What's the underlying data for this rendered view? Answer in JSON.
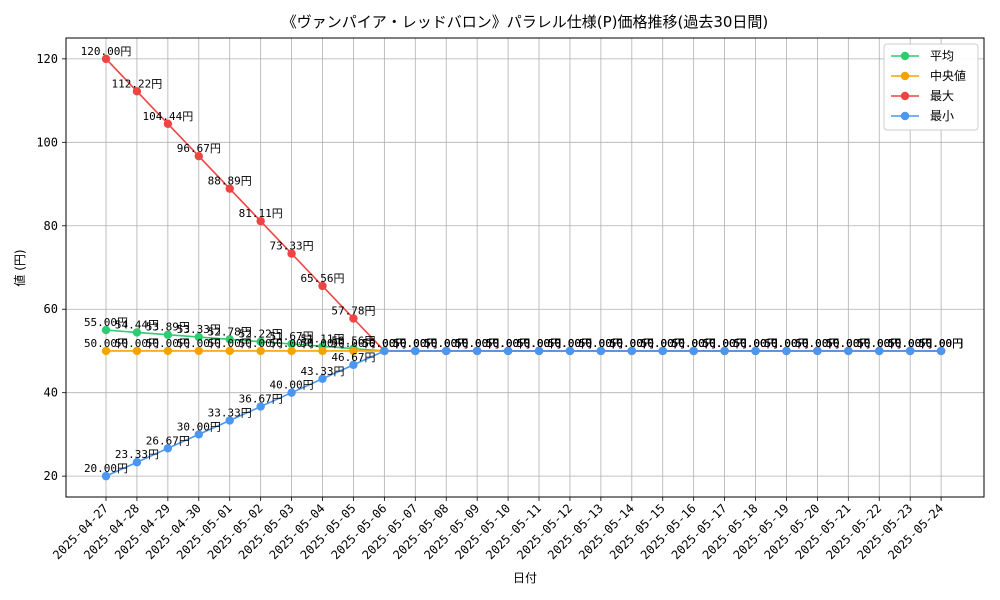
{
  "chart_data": {
    "type": "line",
    "title": "《ヴァンパイア・レッドバロン》パラレル仕様(P)価格推移(過去30日間)",
    "xlabel": "日付",
    "ylabel": "値 (円)",
    "ylim": [
      15,
      125
    ],
    "yticks": [
      20,
      40,
      60,
      80,
      100,
      120
    ],
    "grid": true,
    "legend_position": "top-right",
    "label_suffix": "円",
    "categories": [
      "2025-04-27",
      "2025-04-28",
      "2025-04-29",
      "2025-04-30",
      "2025-05-01",
      "2025-05-02",
      "2025-05-03",
      "2025-05-04",
      "2025-05-05",
      "2025-05-06",
      "2025-05-07",
      "2025-05-08",
      "2025-05-09",
      "2025-05-10",
      "2025-05-11",
      "2025-05-12",
      "2025-05-13",
      "2025-05-14",
      "2025-05-15",
      "2025-05-16",
      "2025-05-17",
      "2025-05-18",
      "2025-05-19",
      "2025-05-20",
      "2025-05-21",
      "2025-05-22",
      "2025-05-23",
      "2025-05-24"
    ],
    "series": [
      {
        "name": "平均",
        "color": "#2ecc71",
        "values": [
          55.0,
          54.44,
          53.89,
          53.33,
          52.78,
          52.22,
          51.67,
          51.11,
          50.56,
          50,
          50,
          50,
          50,
          50,
          50,
          50,
          50,
          50,
          50,
          50,
          50,
          50,
          50,
          50,
          50,
          50,
          50,
          50
        ]
      },
      {
        "name": "中央値",
        "color": "#f5a300",
        "values": [
          50,
          50,
          50,
          50,
          50,
          50,
          50,
          50,
          50,
          50,
          50,
          50,
          50,
          50,
          50,
          50,
          50,
          50,
          50,
          50,
          50,
          50,
          50,
          50,
          50,
          50,
          50,
          50
        ]
      },
      {
        "name": "最大",
        "color": "#ef4444",
        "values": [
          120.0,
          112.22,
          104.44,
          96.67,
          88.89,
          81.11,
          73.33,
          65.56,
          57.78,
          50,
          50,
          50,
          50,
          50,
          50,
          50,
          50,
          50,
          50,
          50,
          50,
          50,
          50,
          50,
          50,
          50,
          50,
          50
        ]
      },
      {
        "name": "最小",
        "color": "#4b96f0",
        "values": [
          20.0,
          23.33,
          26.67,
          30.0,
          33.33,
          36.67,
          40.0,
          43.33,
          46.67,
          50,
          50,
          50,
          50,
          50,
          50,
          50,
          50,
          50,
          50,
          50,
          50,
          50,
          50,
          50,
          50,
          50,
          50,
          50
        ]
      }
    ]
  }
}
